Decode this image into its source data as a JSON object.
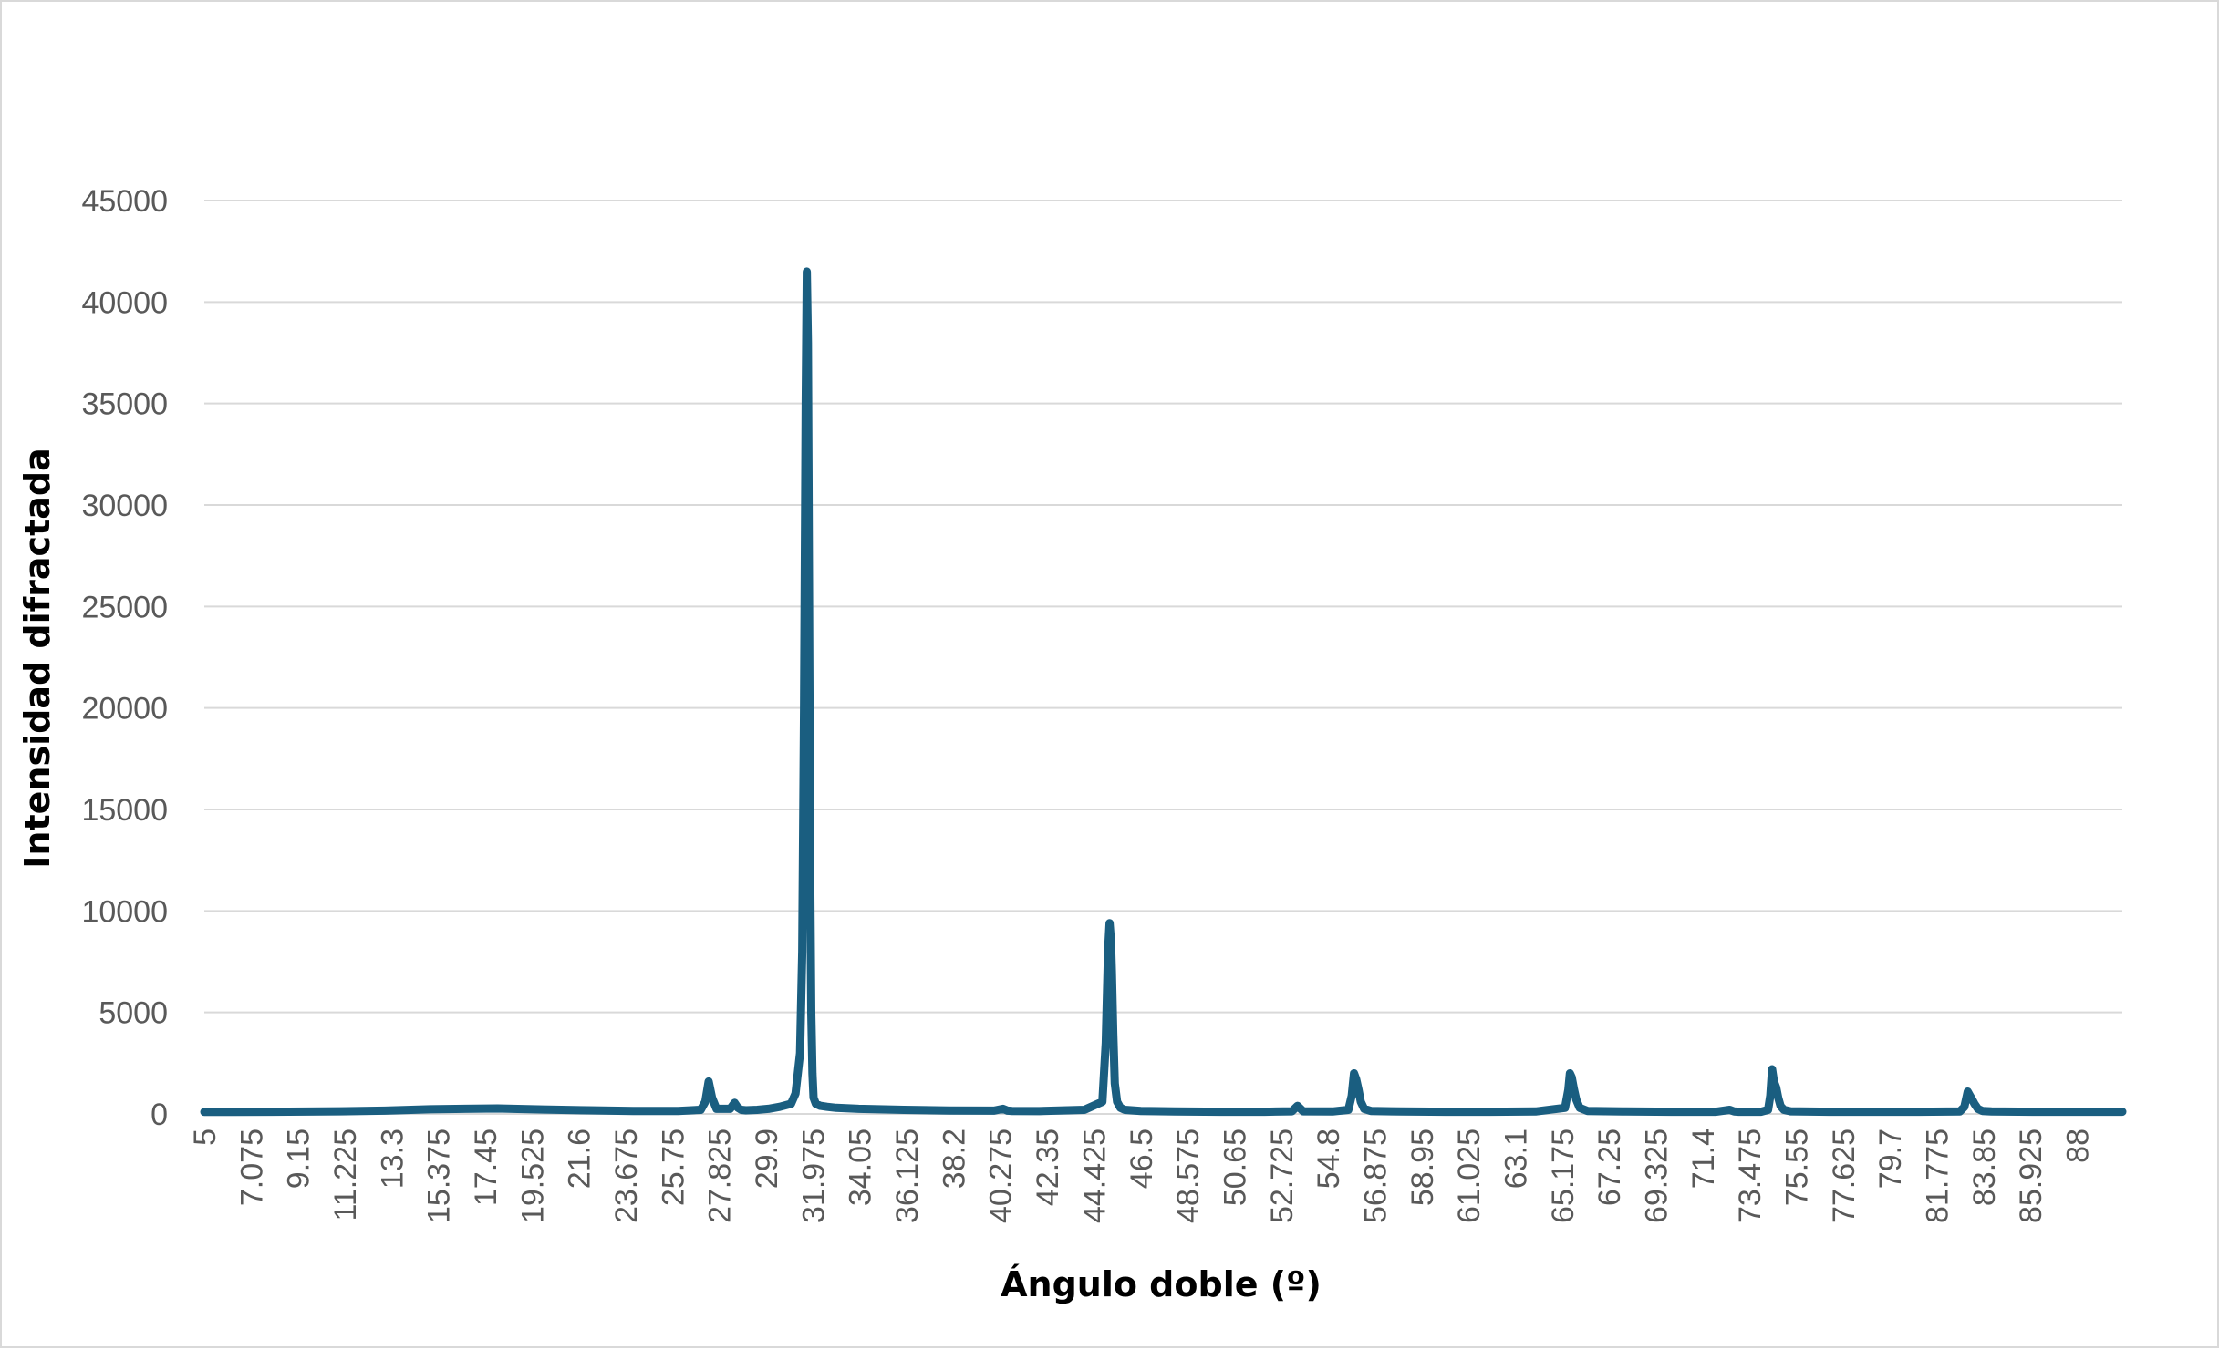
{
  "colors": {
    "series": "#1a5e80",
    "gridline": "#d9d9d9",
    "tick_text": "#595959",
    "axis_title_text": "#000000",
    "background": "#ffffff"
  },
  "chart_data": {
    "type": "line",
    "title": "",
    "xlabel": "Ángulo doble (º)",
    "ylabel": "Intensidad difractada",
    "xlim": [
      5,
      90
    ],
    "ylim": [
      0,
      45000
    ],
    "y_ticks": [
      0,
      5000,
      10000,
      15000,
      20000,
      25000,
      30000,
      35000,
      40000,
      45000
    ],
    "x_tick_labels": [
      "5",
      "7.075",
      "9.15",
      "11.225",
      "13.3",
      "15.375",
      "17.45",
      "19.525",
      "21.6",
      "23.675",
      "25.75",
      "27.825",
      "29.9",
      "31.975",
      "34.05",
      "36.125",
      "38.2",
      "40.275",
      "42.35",
      "44.425",
      "46.5",
      "48.575",
      "50.65",
      "52.725",
      "54.8",
      "56.875",
      "58.95",
      "61.025",
      "63.1",
      "65.175",
      "67.25",
      "69.325",
      "71.4",
      "73.475",
      "75.55",
      "77.625",
      "79.7",
      "81.775",
      "83.85",
      "85.925",
      "88"
    ],
    "grid": "horizontal",
    "legend": "none",
    "series": [
      {
        "x": [
          5,
          8,
          11,
          13,
          15,
          17,
          18,
          20,
          22,
          24,
          26,
          27,
          27.2,
          27.35,
          27.5,
          27.7,
          28,
          28.3,
          28.5,
          28.65,
          28.8,
          29,
          29.5,
          30,
          30.5,
          31,
          31.2,
          31.4,
          31.5,
          31.58,
          31.65,
          31.7,
          31.75,
          31.8,
          31.85,
          31.9,
          31.95,
          32,
          32.1,
          32.3,
          32.6,
          33,
          34,
          36,
          38,
          40,
          40.4,
          40.6,
          40.8,
          42,
          44,
          44.8,
          44.95,
          45.05,
          45.12,
          45.18,
          45.22,
          45.28,
          45.35,
          45.45,
          45.6,
          45.8,
          46.5,
          48,
          50,
          52,
          53.2,
          53.45,
          53.7,
          55,
          55.7,
          55.85,
          55.95,
          56.05,
          56.15,
          56.25,
          56.4,
          56.7,
          58,
          60,
          62,
          64,
          65.3,
          65.45,
          65.52,
          65.6,
          65.7,
          65.8,
          65.95,
          66.3,
          68,
          70,
          72,
          72.6,
          72.8,
          73,
          74,
          74.3,
          74.4,
          74.48,
          74.56,
          74.66,
          74.75,
          74.85,
          75,
          75.3,
          77,
          79,
          81,
          82.8,
          83,
          83.15,
          83.25,
          83.35,
          83.45,
          83.6,
          83.8,
          84.2,
          86,
          88,
          90
        ],
        "y": [
          100,
          110,
          130,
          160,
          230,
          260,
          270,
          220,
          180,
          150,
          150,
          200,
          600,
          1600,
          800,
          250,
          250,
          250,
          550,
          300,
          200,
          180,
          200,
          250,
          350,
          500,
          1000,
          3000,
          8000,
          20000,
          35000,
          41500,
          38000,
          25000,
          12000,
          5000,
          2000,
          800,
          500,
          400,
          350,
          300,
          250,
          200,
          170,
          160,
          250,
          160,
          150,
          140,
          200,
          600,
          3500,
          8000,
          9400,
          8500,
          7000,
          4000,
          1500,
          600,
          300,
          200,
          150,
          120,
          110,
          110,
          130,
          400,
          130,
          120,
          200,
          900,
          2000,
          1700,
          1200,
          600,
          250,
          150,
          120,
          110,
          110,
          120,
          300,
          1200,
          2000,
          1800,
          1200,
          700,
          300,
          150,
          120,
          110,
          110,
          200,
          120,
          110,
          110,
          200,
          900,
          2200,
          1600,
          1300,
          800,
          400,
          200,
          130,
          110,
          110,
          110,
          120,
          350,
          1100,
          900,
          700,
          500,
          250,
          150,
          120,
          110,
          110,
          110
        ]
      }
    ]
  }
}
